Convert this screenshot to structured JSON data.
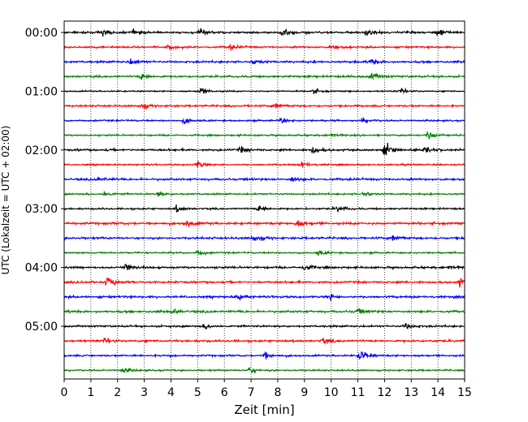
{
  "chart_data": {
    "type": "line",
    "title": "",
    "xlabel": "Zeit  [min]",
    "ylabel": "UTC (Lokalzeit = UTC + 02:00)",
    "xlim": [
      0,
      15
    ],
    "x_ticks": [
      "0",
      "1",
      "2",
      "3",
      "4",
      "5",
      "6",
      "7",
      "8",
      "9",
      "10",
      "11",
      "12",
      "13",
      "14",
      "15"
    ],
    "y_tick_labels": [
      "00:00",
      "01:00",
      "02:00",
      "03:00",
      "04:00",
      "05:00"
    ],
    "y_tick_rows": [
      0,
      4,
      8,
      12,
      16,
      20
    ],
    "row_interval_minutes": 15,
    "row_count": 24,
    "row_colors": [
      "#000000",
      "#ff0000",
      "#0000ff",
      "#008000"
    ],
    "vertical_grid": "dotted",
    "legend": "none",
    "events": [
      {
        "row": 0,
        "x": 1.4,
        "amp": 0.35
      },
      {
        "row": 0,
        "x": 2.6,
        "amp": 0.3
      },
      {
        "row": 0,
        "x": 5.1,
        "amp": 0.35
      },
      {
        "row": 0,
        "x": 8.2,
        "amp": 0.45
      },
      {
        "row": 0,
        "x": 11.3,
        "amp": 0.3
      },
      {
        "row": 0,
        "x": 14.0,
        "amp": 0.45
      },
      {
        "row": 1,
        "x": 3.8,
        "amp": 0.3
      },
      {
        "row": 1,
        "x": 6.2,
        "amp": 0.3
      },
      {
        "row": 1,
        "x": 10.0,
        "amp": 0.3
      },
      {
        "row": 2,
        "x": 2.5,
        "amp": 0.4
      },
      {
        "row": 2,
        "x": 7.1,
        "amp": 0.3
      },
      {
        "row": 2,
        "x": 11.5,
        "amp": 0.3
      },
      {
        "row": 3,
        "x": 2.9,
        "amp": 0.4
      },
      {
        "row": 3,
        "x": 11.5,
        "amp": 0.4
      },
      {
        "row": 4,
        "x": 5.1,
        "amp": 0.45
      },
      {
        "row": 4,
        "x": 9.3,
        "amp": 0.3
      },
      {
        "row": 4,
        "x": 12.6,
        "amp": 0.3
      },
      {
        "row": 5,
        "x": 2.9,
        "amp": 0.35
      },
      {
        "row": 5,
        "x": 7.9,
        "amp": 0.35
      },
      {
        "row": 6,
        "x": 4.5,
        "amp": 0.35
      },
      {
        "row": 6,
        "x": 8.1,
        "amp": 0.3
      },
      {
        "row": 6,
        "x": 11.2,
        "amp": 0.3
      },
      {
        "row": 7,
        "x": 13.6,
        "amp": 0.5
      },
      {
        "row": 7,
        "x": 10.0,
        "amp": 0.3
      },
      {
        "row": 8,
        "x": 6.6,
        "amp": 0.35
      },
      {
        "row": 8,
        "x": 9.3,
        "amp": 0.4
      },
      {
        "row": 8,
        "x": 12.0,
        "amp": 0.75
      },
      {
        "row": 8,
        "x": 13.5,
        "amp": 0.4
      },
      {
        "row": 9,
        "x": 5.0,
        "amp": 0.4
      },
      {
        "row": 9,
        "x": 8.9,
        "amp": 0.35
      },
      {
        "row": 10,
        "x": 1.3,
        "amp": 0.3
      },
      {
        "row": 10,
        "x": 8.5,
        "amp": 0.3
      },
      {
        "row": 11,
        "x": 1.5,
        "amp": 0.35
      },
      {
        "row": 11,
        "x": 3.5,
        "amp": 0.35
      },
      {
        "row": 11,
        "x": 11.2,
        "amp": 0.3
      },
      {
        "row": 12,
        "x": 4.2,
        "amp": 0.35
      },
      {
        "row": 12,
        "x": 7.3,
        "amp": 0.45
      },
      {
        "row": 12,
        "x": 10.2,
        "amp": 0.35
      },
      {
        "row": 13,
        "x": 4.6,
        "amp": 0.35
      },
      {
        "row": 13,
        "x": 8.7,
        "amp": 0.5
      },
      {
        "row": 14,
        "x": 7.1,
        "amp": 0.5
      },
      {
        "row": 14,
        "x": 12.3,
        "amp": 0.35
      },
      {
        "row": 15,
        "x": 5.0,
        "amp": 0.35
      },
      {
        "row": 15,
        "x": 9.5,
        "amp": 0.3
      },
      {
        "row": 16,
        "x": 2.3,
        "amp": 0.45
      },
      {
        "row": 16,
        "x": 9.0,
        "amp": 0.35
      },
      {
        "row": 16,
        "x": 14.4,
        "amp": 0.3
      },
      {
        "row": 17,
        "x": 1.6,
        "amp": 0.6
      },
      {
        "row": 17,
        "x": 14.8,
        "amp": 0.4
      },
      {
        "row": 18,
        "x": 6.5,
        "amp": 0.35
      },
      {
        "row": 18,
        "x": 9.9,
        "amp": 0.4
      },
      {
        "row": 19,
        "x": 11.0,
        "amp": 0.3
      },
      {
        "row": 19,
        "x": 4.0,
        "amp": 0.3
      },
      {
        "row": 20,
        "x": 5.3,
        "amp": 0.3
      },
      {
        "row": 20,
        "x": 12.8,
        "amp": 0.35
      },
      {
        "row": 21,
        "x": 9.7,
        "amp": 0.35
      },
      {
        "row": 21,
        "x": 1.5,
        "amp": 0.3
      },
      {
        "row": 22,
        "x": 7.5,
        "amp": 0.35
      },
      {
        "row": 22,
        "x": 11.1,
        "amp": 0.75
      },
      {
        "row": 23,
        "x": 6.9,
        "amp": 0.4
      },
      {
        "row": 23,
        "x": 2.2,
        "amp": 0.3
      }
    ]
  }
}
